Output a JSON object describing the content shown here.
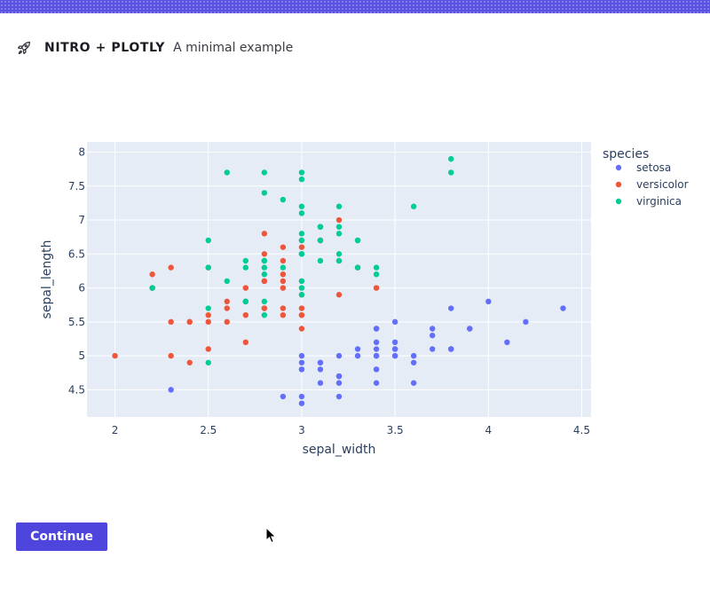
{
  "app": {
    "brand": "NITRO + PLOTLY",
    "subtitle": "A minimal example",
    "icon": "rocket-icon",
    "accent": "#4e46dc"
  },
  "actions": {
    "continue_label": "Continue"
  },
  "chart_data": {
    "type": "scatter",
    "title": "",
    "xlabel": "sepal_width",
    "ylabel": "sepal_length",
    "xlim": [
      1.85,
      4.55
    ],
    "ylim": [
      4.1,
      8.15
    ],
    "xticks": [
      "2",
      "2.5",
      "3",
      "3.5",
      "4",
      "4.5"
    ],
    "yticks": [
      "4.5",
      "5",
      "5.5",
      "6",
      "6.5",
      "7",
      "7.5",
      "8"
    ],
    "grid": true,
    "legend": {
      "title": "species",
      "position": "right"
    },
    "series": [
      {
        "name": "setosa",
        "color": "#636efa",
        "points": [
          [
            3.5,
            5.1
          ],
          [
            3.0,
            4.9
          ],
          [
            3.2,
            4.7
          ],
          [
            3.1,
            4.6
          ],
          [
            3.6,
            5.0
          ],
          [
            3.9,
            5.4
          ],
          [
            3.4,
            4.6
          ],
          [
            3.4,
            5.0
          ],
          [
            2.9,
            4.4
          ],
          [
            3.1,
            4.9
          ],
          [
            3.7,
            5.4
          ],
          [
            3.4,
            4.8
          ],
          [
            3.0,
            4.8
          ],
          [
            3.0,
            4.3
          ],
          [
            4.0,
            5.8
          ],
          [
            4.4,
            5.7
          ],
          [
            3.9,
            5.4
          ],
          [
            3.5,
            5.1
          ],
          [
            3.8,
            5.7
          ],
          [
            3.8,
            5.1
          ],
          [
            3.4,
            5.4
          ],
          [
            3.7,
            5.1
          ],
          [
            3.6,
            4.6
          ],
          [
            3.3,
            5.1
          ],
          [
            3.4,
            4.8
          ],
          [
            3.0,
            5.0
          ],
          [
            3.4,
            5.0
          ],
          [
            3.5,
            5.2
          ],
          [
            3.4,
            5.2
          ],
          [
            3.2,
            4.7
          ],
          [
            3.1,
            4.8
          ],
          [
            3.4,
            5.4
          ],
          [
            4.1,
            5.2
          ],
          [
            4.2,
            5.5
          ],
          [
            3.1,
            4.9
          ],
          [
            3.2,
            5.0
          ],
          [
            3.5,
            5.5
          ],
          [
            3.6,
            4.9
          ],
          [
            3.0,
            4.4
          ],
          [
            3.4,
            5.1
          ],
          [
            3.5,
            5.0
          ],
          [
            2.3,
            4.5
          ],
          [
            3.2,
            4.4
          ],
          [
            3.5,
            5.0
          ],
          [
            3.8,
            5.1
          ],
          [
            3.0,
            4.8
          ],
          [
            3.8,
            5.1
          ],
          [
            3.2,
            4.6
          ],
          [
            3.7,
            5.3
          ],
          [
            3.3,
            5.0
          ]
        ]
      },
      {
        "name": "versicolor",
        "color": "#ef553b",
        "points": [
          [
            3.2,
            7.0
          ],
          [
            3.2,
            6.4
          ],
          [
            3.1,
            6.9
          ],
          [
            2.3,
            5.5
          ],
          [
            2.8,
            6.5
          ],
          [
            2.8,
            5.7
          ],
          [
            3.3,
            6.3
          ],
          [
            2.4,
            4.9
          ],
          [
            2.9,
            6.6
          ],
          [
            2.7,
            5.2
          ],
          [
            2.0,
            5.0
          ],
          [
            3.0,
            5.9
          ],
          [
            2.2,
            6.0
          ],
          [
            2.9,
            6.1
          ],
          [
            2.9,
            5.6
          ],
          [
            3.1,
            6.7
          ],
          [
            3.0,
            5.6
          ],
          [
            2.7,
            5.8
          ],
          [
            2.2,
            6.2
          ],
          [
            2.5,
            5.6
          ],
          [
            3.2,
            5.9
          ],
          [
            2.8,
            6.1
          ],
          [
            2.5,
            6.3
          ],
          [
            2.8,
            6.1
          ],
          [
            2.9,
            6.4
          ],
          [
            3.0,
            6.6
          ],
          [
            2.8,
            6.8
          ],
          [
            3.0,
            6.7
          ],
          [
            2.9,
            6.0
          ],
          [
            2.6,
            5.7
          ],
          [
            2.4,
            5.5
          ],
          [
            2.4,
            5.5
          ],
          [
            2.7,
            5.8
          ],
          [
            2.7,
            6.0
          ],
          [
            3.0,
            5.4
          ],
          [
            3.4,
            6.0
          ],
          [
            3.1,
            6.7
          ],
          [
            2.3,
            6.3
          ],
          [
            3.0,
            5.6
          ],
          [
            2.5,
            5.5
          ],
          [
            2.6,
            5.5
          ],
          [
            3.0,
            6.1
          ],
          [
            2.6,
            5.8
          ],
          [
            2.3,
            5.0
          ],
          [
            2.7,
            5.6
          ],
          [
            3.0,
            5.7
          ],
          [
            2.9,
            5.7
          ],
          [
            2.9,
            6.2
          ],
          [
            2.5,
            5.1
          ],
          [
            2.8,
            5.7
          ]
        ]
      },
      {
        "name": "virginica",
        "color": "#00cc96",
        "points": [
          [
            3.3,
            6.3
          ],
          [
            2.7,
            5.8
          ],
          [
            3.0,
            7.1
          ],
          [
            2.9,
            6.3
          ],
          [
            3.0,
            6.5
          ],
          [
            3.0,
            7.6
          ],
          [
            2.5,
            4.9
          ],
          [
            2.9,
            7.3
          ],
          [
            2.5,
            6.7
          ],
          [
            3.6,
            7.2
          ],
          [
            3.2,
            6.5
          ],
          [
            2.7,
            6.4
          ],
          [
            3.0,
            6.8
          ],
          [
            2.5,
            5.7
          ],
          [
            2.8,
            5.8
          ],
          [
            3.2,
            6.4
          ],
          [
            3.0,
            6.5
          ],
          [
            3.8,
            7.7
          ],
          [
            2.6,
            7.7
          ],
          [
            2.2,
            6.0
          ],
          [
            3.2,
            6.9
          ],
          [
            2.8,
            5.6
          ],
          [
            2.8,
            7.7
          ],
          [
            2.7,
            6.3
          ],
          [
            3.3,
            6.7
          ],
          [
            3.2,
            7.2
          ],
          [
            2.8,
            6.2
          ],
          [
            3.0,
            6.1
          ],
          [
            2.8,
            6.4
          ],
          [
            3.0,
            7.2
          ],
          [
            2.8,
            7.4
          ],
          [
            3.8,
            7.9
          ],
          [
            2.8,
            6.4
          ],
          [
            2.8,
            6.3
          ],
          [
            2.6,
            6.1
          ],
          [
            3.0,
            7.7
          ],
          [
            3.4,
            6.3
          ],
          [
            3.1,
            6.4
          ],
          [
            3.0,
            6.0
          ],
          [
            3.1,
            6.9
          ],
          [
            3.1,
            6.7
          ],
          [
            3.1,
            6.9
          ],
          [
            2.7,
            5.8
          ],
          [
            3.2,
            6.8
          ],
          [
            3.3,
            6.7
          ],
          [
            3.0,
            6.7
          ],
          [
            2.5,
            6.3
          ],
          [
            3.0,
            6.5
          ],
          [
            3.4,
            6.2
          ],
          [
            3.0,
            5.9
          ]
        ]
      }
    ]
  }
}
